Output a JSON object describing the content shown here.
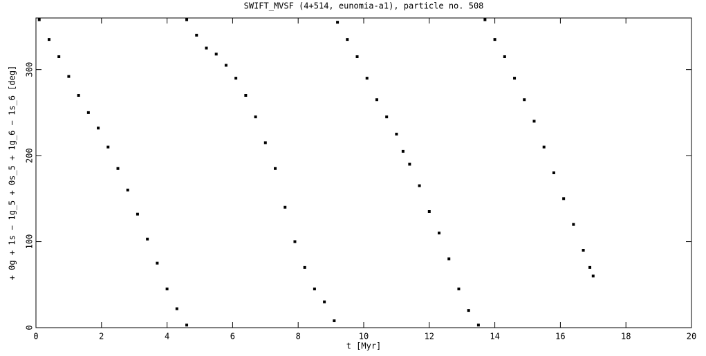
{
  "chart_data": {
    "type": "scatter",
    "title": "SWIFT_MVSF (4+514, eunomia-a1), particle no. 508",
    "x_label": "t [Myr]",
    "y_label": "+ 0g + 1s − 1g_5 + 0s_5 + 1g_6 − 1s_6 [deg]",
    "color": "#000000",
    "x": [
      0.1,
      0.4,
      0.7,
      1.0,
      1.3,
      1.6,
      1.9,
      2.2,
      2.5,
      2.8,
      3.1,
      3.4,
      3.7,
      4.0,
      4.3,
      4.6,
      4.6,
      4.9,
      5.2,
      5.5,
      5.8,
      6.1,
      6.4,
      6.7,
      7.0,
      7.3,
      7.6,
      7.9,
      8.2,
      8.5,
      8.8,
      9.1,
      9.2,
      9.5,
      9.8,
      10.1,
      10.4,
      10.7,
      11.0,
      11.2,
      11.4,
      11.7,
      12.0,
      12.3,
      12.6,
      12.9,
      13.2,
      13.5,
      13.7,
      14.0,
      14.3,
      14.6,
      14.9,
      15.2,
      15.5,
      15.8,
      16.1,
      16.4,
      16.7,
      16.9,
      17.0
    ],
    "y": [
      358,
      335,
      315,
      292,
      270,
      250,
      232,
      210,
      185,
      160,
      132,
      103,
      75,
      45,
      22,
      3,
      358,
      340,
      325,
      318,
      305,
      290,
      270,
      245,
      215,
      185,
      140,
      100,
      70,
      45,
      30,
      8,
      355,
      335,
      315,
      290,
      265,
      245,
      225,
      205,
      190,
      165,
      135,
      110,
      80,
      45,
      20,
      3,
      358,
      335,
      315,
      290,
      265,
      240,
      210,
      180,
      150,
      120,
      90,
      70,
      60
    ],
    "xlim": [
      0,
      20
    ],
    "ylim": [
      0,
      360
    ],
    "xticks": [
      0,
      2,
      4,
      6,
      8,
      10,
      12,
      14,
      16,
      18,
      20
    ],
    "yticks": [
      0,
      100,
      200,
      300
    ]
  }
}
